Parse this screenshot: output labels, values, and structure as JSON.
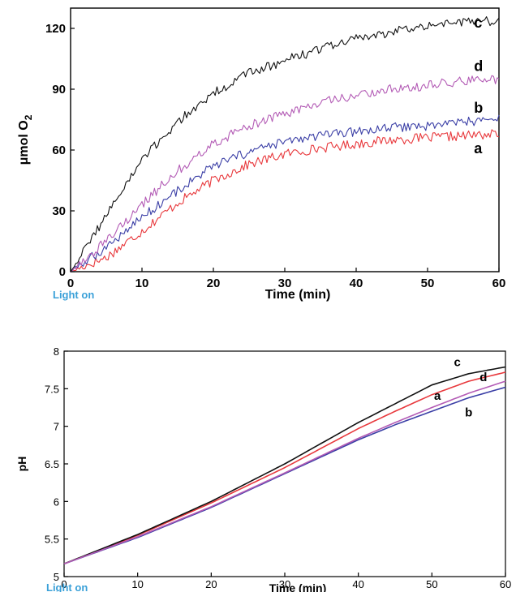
{
  "colors": {
    "a": "#e8383c",
    "b": "#3b3fa6",
    "c": "#111111",
    "d": "#b35bb5",
    "note": "#3aa0d8"
  },
  "chart_data": [
    {
      "type": "line",
      "title": "",
      "xlabel": "Time (min)",
      "ylabel": "μmol O",
      "ylabel_sub": "2",
      "xlim": [
        0,
        60
      ],
      "ylim": [
        0,
        130
      ],
      "xticks": [
        0,
        10,
        20,
        30,
        40,
        50,
        60
      ],
      "yticks": [
        0,
        30,
        60,
        90,
        120
      ],
      "grid": false,
      "annotation": "Light on",
      "x": [
        0,
        5,
        10,
        15,
        20,
        25,
        30,
        35,
        40,
        45,
        50,
        55,
        60
      ],
      "series": [
        {
          "name": "a",
          "values": [
            0,
            7,
            20,
            34,
            45,
            53,
            58,
            61,
            63,
            65,
            66,
            67,
            68
          ]
        },
        {
          "name": "b",
          "values": [
            0,
            12,
            27,
            40,
            52,
            59,
            64,
            67,
            69,
            71,
            72,
            74,
            75
          ]
        },
        {
          "name": "c",
          "values": [
            0,
            28,
            55,
            74,
            88,
            98,
            104,
            110,
            115,
            118,
            122,
            123,
            124
          ]
        },
        {
          "name": "d",
          "values": [
            0,
            15,
            33,
            50,
            63,
            72,
            78,
            83,
            87,
            90,
            92,
            94,
            95
          ]
        }
      ]
    },
    {
      "type": "line",
      "title": "",
      "xlabel": "Time (min)",
      "ylabel": "pH",
      "xlim": [
        0,
        60
      ],
      "ylim": [
        5,
        8
      ],
      "xticks": [
        0,
        10,
        20,
        30,
        40,
        50,
        60
      ],
      "yticks": [
        5,
        5.5,
        6,
        6.5,
        7,
        7.5,
        8
      ],
      "grid": false,
      "annotation": "Light on",
      "x": [
        0,
        10,
        20,
        30,
        40,
        45,
        50,
        55,
        60
      ],
      "series": [
        {
          "name": "a",
          "values": [
            5.17,
            5.55,
            5.98,
            6.45,
            6.97,
            7.2,
            7.42,
            7.6,
            7.72
          ]
        },
        {
          "name": "b",
          "values": [
            5.17,
            5.52,
            5.92,
            6.37,
            6.82,
            7.02,
            7.2,
            7.38,
            7.52
          ]
        },
        {
          "name": "c",
          "values": [
            5.17,
            5.56,
            6.0,
            6.5,
            7.05,
            7.3,
            7.55,
            7.7,
            7.79
          ]
        },
        {
          "name": "d",
          "values": [
            5.17,
            5.53,
            5.93,
            6.38,
            6.84,
            7.05,
            7.25,
            7.44,
            7.6
          ]
        }
      ]
    }
  ]
}
